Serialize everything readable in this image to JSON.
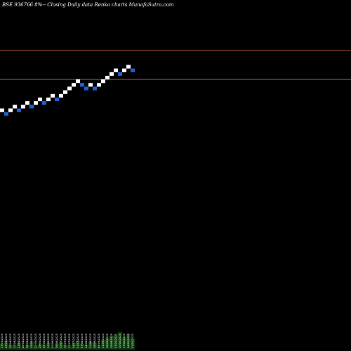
{
  "header": {
    "title": "BSE 936766  8%-- Closing Daily data  Renko  charts MunafaSutra.com"
  },
  "colors": {
    "background": "#000000",
    "up_brick": "#ffffff",
    "down_brick": "#1f5fd6",
    "ref_line": "#a0522d",
    "volume": "#0b3b0b",
    "text": "#ffffff"
  },
  "chart_data": {
    "type": "renko",
    "title": "BSE 936766  8%-- Closing Daily data  Renko  charts MunafaSutra.com",
    "brick_size": 1,
    "start_level": 0,
    "bricks": [
      "up",
      "down",
      "up",
      "up",
      "down",
      "up",
      "up",
      "down",
      "up",
      "up",
      "down",
      "up",
      "up",
      "down",
      "up",
      "up",
      "up",
      "up",
      "up",
      "down",
      "down",
      "up",
      "down",
      "up",
      "up",
      "up",
      "up",
      "up",
      "down",
      "up",
      "up",
      "down"
    ],
    "reference_lines": [
      17,
      9
    ],
    "ylim": [
      -60,
      27
    ],
    "volume": {
      "values": [
        6,
        9,
        5,
        4,
        7,
        3,
        5,
        8,
        4,
        6,
        5,
        7,
        3,
        6,
        8,
        5,
        4,
        7,
        9,
        6,
        5,
        8,
        7,
        4,
        10,
        12,
        14,
        15,
        18,
        13,
        16,
        11
      ],
      "ylim": [
        0,
        20
      ]
    },
    "date_labels": [
      "17/03/2023",
      "29/03/2023",
      "05/04/2023",
      "13/04/2023",
      "21/04/2023",
      "28/04/2023",
      "08/05/2023",
      "15/05/2023",
      "22/05/2023",
      "29/05/2023",
      "05/06/2023",
      "12/06/2023",
      "19/06/2023",
      "26/06/2023",
      "03/07/2023",
      "10/07/2023",
      "17/07/2023",
      "24/07/2023",
      "31/07/2023",
      "07/08/2023",
      "14/08/2023",
      "21/08/2023",
      "28/08/2023",
      "04/09/2023",
      "11/09/2023",
      "18/09/2023",
      "25/09/2023",
      "03/10/2023",
      "10/10/2023",
      "17/10/2023",
      "24/10/2023",
      "31/10/2023"
    ]
  }
}
